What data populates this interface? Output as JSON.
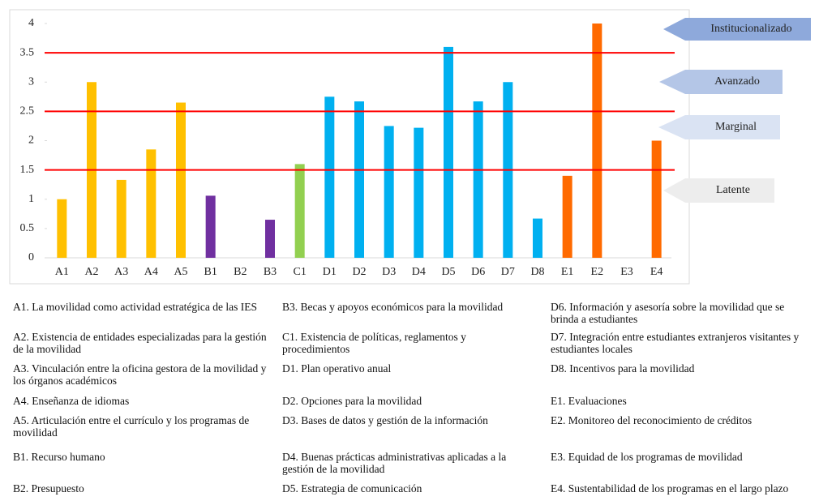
{
  "chart_data": {
    "type": "bar",
    "categories": [
      "A1",
      "A2",
      "A3",
      "A4",
      "A5",
      "B1",
      "B2",
      "B3",
      "C1",
      "D1",
      "D2",
      "D3",
      "D4",
      "D5",
      "D6",
      "D7",
      "D8",
      "E1",
      "E2",
      "E3",
      "E4"
    ],
    "values": [
      1.0,
      3.0,
      1.33,
      1.85,
      2.65,
      1.06,
      0,
      0.65,
      1.6,
      2.75,
      2.67,
      2.25,
      2.22,
      3.6,
      2.67,
      3.0,
      0.67,
      1.4,
      4.0,
      0,
      2.0
    ],
    "colors": [
      "#ffc000",
      "#ffc000",
      "#ffc000",
      "#ffc000",
      "#ffc000",
      "#7030a0",
      "#7030a0",
      "#7030a0",
      "#92d050",
      "#00b0f0",
      "#00b0f0",
      "#00b0f0",
      "#00b0f0",
      "#00b0f0",
      "#00b0f0",
      "#00b0f0",
      "#00b0f0",
      "#ff6a00",
      "#ff6a00",
      "#ff6a00",
      "#ff6a00"
    ],
    "ylim": [
      0,
      4
    ],
    "yticks": [
      0,
      0.5,
      1,
      1.5,
      2,
      2.5,
      3,
      3.5,
      4
    ],
    "thresholds": [
      1.5,
      2.5,
      3.5
    ],
    "threshold_color": "#ff0000",
    "levels": [
      {
        "label": "Institucionalizado",
        "color": "#8ea9db"
      },
      {
        "label": "Avanzado",
        "color": "#b4c6e7"
      },
      {
        "label": "Marginal",
        "color": "#dae3f3"
      },
      {
        "label": "Latente",
        "color": "#ededed"
      }
    ],
    "descriptions": [
      "A1. La movilidad como actividad estratégica de las IES",
      "A2. Existencia de entidades especializadas para la gestión de la movilidad",
      "A3. Vinculación entre la oficina gestora de la movilidad y los órganos académicos",
      "A4. Enseñanza de idiomas",
      "A5. Articulación entre el currículo y los programas de movilidad",
      "B1. Recurso humano",
      "B2. Presupuesto",
      "B3. Becas y apoyos económicos para la movilidad",
      "C1. Existencia de políticas, reglamentos y procedimientos",
      "D1. Plan operativo anual",
      "D2. Opciones para la movilidad",
      "D3. Bases de datos y gestión de la información",
      "D4. Buenas prácticas administrativas aplicadas a la gestión de la movilidad",
      "D5. Estrategia de comunicación",
      "D6. Información y asesoría sobre la movilidad que se brinda a estudiantes",
      "D7. Integración entre estudiantes extranjeros visitantes y estudiantes locales",
      "D8. Incentivos para la movilidad",
      "E1. Evaluaciones",
      "E2. Monitoreo del reconocimiento de créditos",
      "E3. Equidad de los programas de movilidad",
      "E4. Sustentabilidad de los programas en el largo plazo"
    ]
  }
}
